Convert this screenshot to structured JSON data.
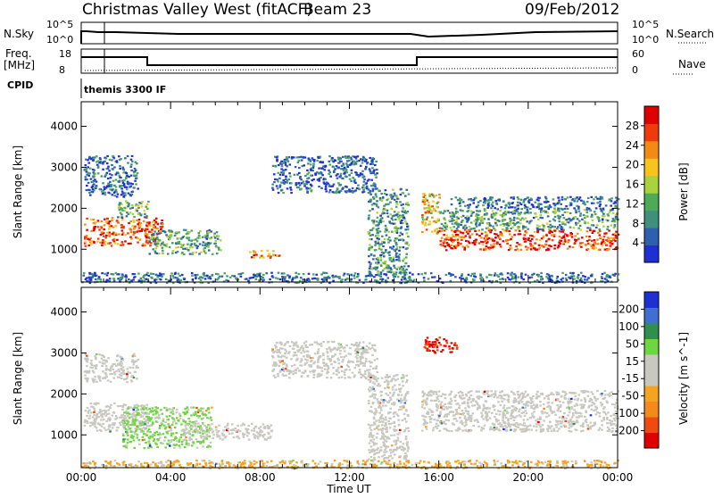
{
  "header": {
    "title": "Christmas Valley West (fitACF)",
    "beam": "Beam 23",
    "date": "09/Feb/2012"
  },
  "noise_panel": {
    "left_label": "N.Sky",
    "left_ticks": [
      "10^5",
      "10^0"
    ],
    "right_ticks": [
      "10^5",
      "10^0"
    ],
    "right_label": "N.Search"
  },
  "freq_panel": {
    "left_label_1": "Freq.",
    "left_label_2": "[MHz]",
    "left_ticks": [
      "18",
      "8"
    ],
    "right_ticks": [
      "60",
      "0"
    ],
    "right_label": "Nave"
  },
  "cpid_panel": {
    "label": "CPID",
    "mode": "themis 3300 IF"
  },
  "x_axis": {
    "label": "Time UT",
    "ticks": [
      "00:00",
      "04:00",
      "08:00",
      "12:00",
      "16:00",
      "20:00",
      "00:00"
    ]
  },
  "chart_data": [
    {
      "type": "heatmap",
      "xlabel": "Time UT",
      "ylabel": "Slant Range [km]",
      "xlim": [
        "00:00",
        "24:00"
      ],
      "ylim": [
        200,
        4600
      ],
      "yticks": [
        "1000",
        "2000",
        "3000",
        "4000"
      ],
      "colorbar_label": "Power [dB]",
      "colorbar_ticks": [
        "28",
        "24",
        "20",
        "16",
        "12",
        "8",
        "4"
      ],
      "colorbar_range": [
        0,
        30
      ],
      "colors": [
        "#1f2fd6",
        "#2f5fb0",
        "#3f8f7c",
        "#4daa56",
        "#a9d33c",
        "#f5c51c",
        "#f38a14",
        "#ef3a0c",
        "#e00000"
      ],
      "regions": [
        {
          "t0": 0.1,
          "t1": 3.6,
          "r0": 1100,
          "r1": 1800,
          "level": 24
        },
        {
          "t0": 1.6,
          "t1": 3.0,
          "r0": 1800,
          "r1": 2200,
          "level": 12
        },
        {
          "t0": 3.0,
          "t1": 6.2,
          "r0": 900,
          "r1": 1500,
          "level": 10
        },
        {
          "t0": 7.5,
          "t1": 8.9,
          "r0": 800,
          "r1": 1000,
          "level": 22
        },
        {
          "t0": 8.5,
          "t1": 13.2,
          "r0": 2400,
          "r1": 3300,
          "level": 5
        },
        {
          "t0": 0.1,
          "t1": 2.5,
          "r0": 2300,
          "r1": 3300,
          "level": 5
        },
        {
          "t0": 12.8,
          "t1": 14.6,
          "r0": 400,
          "r1": 2500,
          "level": 9
        },
        {
          "t0": 15.2,
          "t1": 16.0,
          "r0": 1400,
          "r1": 2400,
          "level": 18
        },
        {
          "t0": 16.0,
          "t1": 24.0,
          "r0": 1000,
          "r1": 1500,
          "level": 26
        },
        {
          "t0": 16.0,
          "t1": 24.0,
          "r0": 1500,
          "r1": 2000,
          "level": 10
        },
        {
          "t0": 16.5,
          "t1": 24.0,
          "r0": 2000,
          "r1": 2300,
          "level": 5
        },
        {
          "t0": 0.0,
          "t1": 24.0,
          "r0": 200,
          "r1": 450,
          "level": 6
        }
      ]
    },
    {
      "type": "heatmap",
      "xlabel": "Time UT",
      "ylabel": "Slant Range [km]",
      "xlim": [
        "00:00",
        "24:00"
      ],
      "ylim": [
        200,
        4600
      ],
      "yticks": [
        "1000",
        "2000",
        "3000",
        "4000"
      ],
      "colorbar_label": "Velocity [m s^-1]",
      "colorbar_ticks": [
        "200",
        "100",
        "50",
        "15",
        "-15",
        "-50",
        "-100",
        "-200"
      ],
      "colorbar_range": [
        -250,
        250
      ],
      "colors": [
        "#e00000",
        "#ef4a10",
        "#f58a1c",
        "#f5a320",
        "#c8c8c0",
        "#c8c8c0",
        "#6fd640",
        "#2f8f4f",
        "#3f6fd0",
        "#1f2fd6"
      ],
      "regions": [
        {
          "t0": 0.1,
          "t1": 3.0,
          "r0": 1100,
          "r1": 1800,
          "vel": 0
        },
        {
          "t0": 1.8,
          "t1": 5.8,
          "r0": 700,
          "r1": 1700,
          "vel": 60
        },
        {
          "t0": 4.5,
          "t1": 8.5,
          "r0": 900,
          "r1": 1300,
          "vel": 0
        },
        {
          "t0": 8.5,
          "t1": 13.2,
          "r0": 2400,
          "r1": 3300,
          "vel": 0
        },
        {
          "t0": 0.1,
          "t1": 2.5,
          "r0": 2300,
          "r1": 3000,
          "vel": 0
        },
        {
          "t0": 12.8,
          "t1": 14.6,
          "r0": 400,
          "r1": 2500,
          "vel": 0
        },
        {
          "t0": 15.2,
          "t1": 24.0,
          "r0": 1100,
          "r1": 2100,
          "vel": 0
        },
        {
          "t0": 15.3,
          "t1": 16.8,
          "r0": 3000,
          "r1": 3400,
          "vel": -200
        },
        {
          "t0": 0.0,
          "t1": 24.0,
          "r0": 200,
          "r1": 400,
          "vel": -60
        }
      ]
    }
  ]
}
